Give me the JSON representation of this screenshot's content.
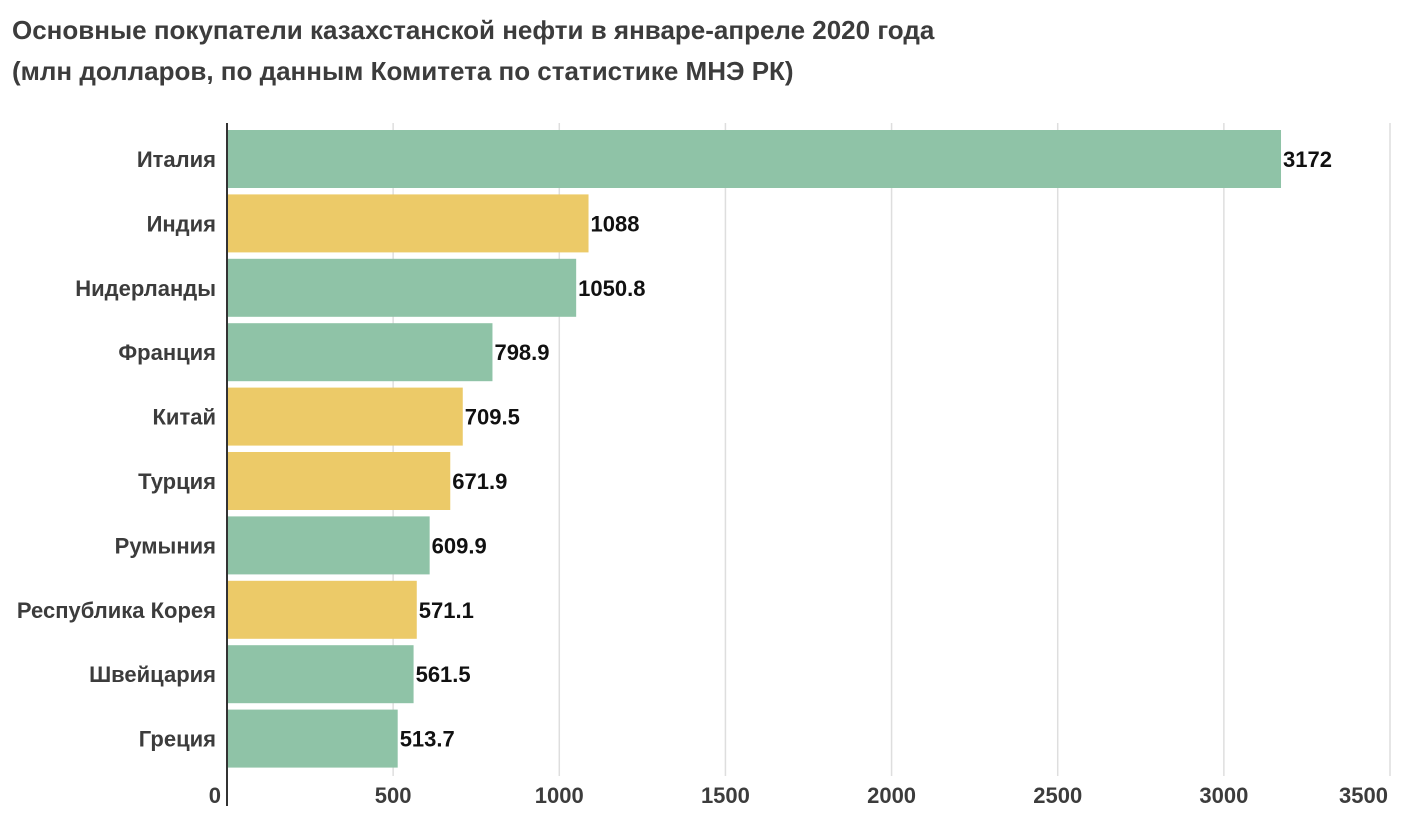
{
  "chart_data": {
    "type": "bar",
    "orientation": "horizontal",
    "title": "Основные покупатели казахстанской нефти в январе-апреле 2020 года",
    "subtitle": "(млн долларов, по данным Комитета по статистике МНЭ РК)",
    "categories": [
      "Италия",
      "Индия",
      "Нидерланды",
      "Франция",
      "Китай",
      "Турция",
      "Румыния",
      "Республика Корея",
      "Швейцария",
      "Греция"
    ],
    "values": [
      3172,
      1088,
      1050.8,
      798.9,
      709.5,
      671.9,
      609.9,
      571.1,
      561.5,
      513.7
    ],
    "value_labels": [
      "3172",
      "1088",
      "1050.8",
      "798.9",
      "709.5",
      "671.9",
      "609.9",
      "571.1",
      "561.5",
      "513.7"
    ],
    "bar_colors": [
      "#8fc3a7",
      "#ecca68",
      "#8fc3a7",
      "#8fc3a7",
      "#ecca68",
      "#ecca68",
      "#8fc3a7",
      "#ecca68",
      "#8fc3a7",
      "#8fc3a7"
    ],
    "xlim": [
      0,
      3500
    ],
    "xticks": [
      0,
      500,
      1000,
      1500,
      2000,
      2500,
      3000,
      3500
    ],
    "xtick_labels": [
      "0",
      "500",
      "1000",
      "1500",
      "2000",
      "2500",
      "3000",
      "3500"
    ],
    "xlabel": "",
    "ylabel": "",
    "grid": true
  },
  "colors": {
    "green": "#8fc3a7",
    "yellow": "#ecca68",
    "grid": "#dedede",
    "axis": "#333333"
  }
}
